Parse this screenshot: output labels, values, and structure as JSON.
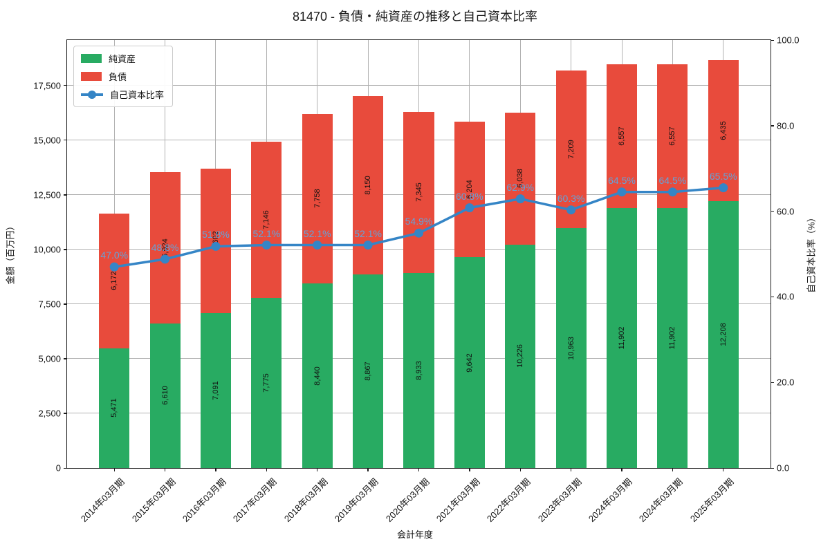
{
  "title": "81470 - 負債・純資産の推移と自己資本比率",
  "colors": {
    "net_assets": "#28ab62",
    "liabilities": "#e84b3c",
    "ratio_line": "#3585c6",
    "ratio_label": "#63a3da",
    "grid": "#b0b0b0",
    "spine": "#1a1a1a"
  },
  "legend": {
    "items": [
      {
        "label": "純資産"
      },
      {
        "label": "負債"
      },
      {
        "label": "自己資本比率"
      }
    ]
  },
  "chart_data": {
    "type": "bar",
    "subtype": "stacked-bar-with-line",
    "title": "81470 - 負債・純資産の推移と自己資本比率",
    "xlabel": "会計年度",
    "ylabel_left": "金額（百万円）",
    "ylabel_right": "自己資本比率（%）",
    "categories": [
      "2014年03月期",
      "2015年03月期",
      "2016年03月期",
      "2017年03月期",
      "2018年03月期",
      "2019年03月期",
      "2020年03月期",
      "2021年03月期",
      "2022年03月期",
      "2023年03月期",
      "2024年03月期",
      "2024年03月期",
      "2025年03月期"
    ],
    "series": [
      {
        "name": "純資産",
        "type": "bar",
        "axis": "left",
        "values": [
          5471,
          6610,
          7091,
          7775,
          8440,
          8867,
          8933,
          9642,
          10226,
          10963,
          11902,
          11902,
          12208
        ]
      },
      {
        "name": "負債",
        "type": "bar",
        "axis": "left",
        "values": [
          6172,
          6924,
          6602,
          7146,
          7758,
          8150,
          7345,
          6204,
          6038,
          7209,
          6557,
          6557,
          6435
        ]
      },
      {
        "name": "自己資本比率",
        "type": "line",
        "axis": "right",
        "values": [
          47.0,
          48.8,
          51.8,
          52.1,
          52.1,
          52.1,
          54.9,
          60.8,
          62.9,
          60.3,
          64.5,
          64.5,
          65.5
        ]
      }
    ],
    "ylim_left": [
      0,
      19575
    ],
    "ylim_right": [
      0,
      100
    ],
    "yticks_left": [
      0,
      2500,
      5000,
      7500,
      10000,
      12500,
      15000,
      17500
    ],
    "yticks_right": [
      0,
      20,
      40,
      60,
      80,
      100
    ],
    "grid": true,
    "legend_position": "upper-left"
  }
}
